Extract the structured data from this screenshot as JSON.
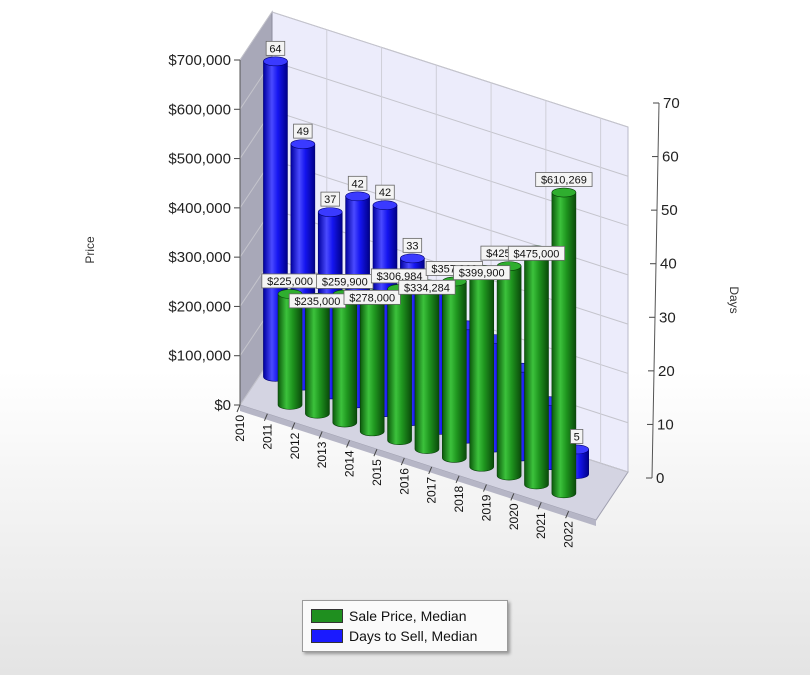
{
  "chart_data": {
    "type": "bar",
    "categories": [
      "2010",
      "2011",
      "2012",
      "2013",
      "2014",
      "2015",
      "2016",
      "2017",
      "2018",
      "2019",
      "2020",
      "2021",
      "2022"
    ],
    "series": [
      {
        "name": "Sale Price, Median",
        "axis": "left",
        "color": "#22a022",
        "values": [
          225000,
          235000,
          259900,
          278000,
          306984,
          334284,
          357960,
          399900,
          425000,
          475000,
          610269,
          null,
          null
        ],
        "labels": [
          "$225,000",
          "$235,000",
          "$259,900",
          "$278,000",
          "$306,984",
          "$334,284",
          "$357,960",
          "$399,900",
          "$425,000",
          "$475,000",
          "$610,269",
          "",
          ""
        ]
      },
      {
        "name": "Days to Sell, Median",
        "axis": "right",
        "color": "#1a1aff",
        "values": [
          64,
          49,
          37,
          42,
          42,
          33,
          29,
          23,
          22,
          18,
          13,
          5,
          null
        ],
        "labels": [
          "64",
          "49",
          "37",
          "42",
          "42",
          "33",
          "",
          "",
          "",
          "",
          "",
          "5",
          ""
        ]
      }
    ],
    "ylabel": "Price",
    "y2label": "Days",
    "ylim": [
      0,
      700000
    ],
    "y2lim": [
      0,
      70
    ],
    "yticks": [
      "$0",
      "$100,000",
      "$200,000",
      "$300,000",
      "$400,000",
      "$500,000",
      "$600,000",
      "$700,000"
    ],
    "y2ticks": [
      "0",
      "10",
      "20",
      "30",
      "40",
      "50",
      "60",
      "70"
    ],
    "grid": true,
    "legend_position": "bottom-center"
  },
  "legend": {
    "items": [
      {
        "label": "Sale Price, Median",
        "color": "#1f8f1f"
      },
      {
        "label": "Days to Sell, Median",
        "color": "#1a1aff"
      }
    ]
  }
}
